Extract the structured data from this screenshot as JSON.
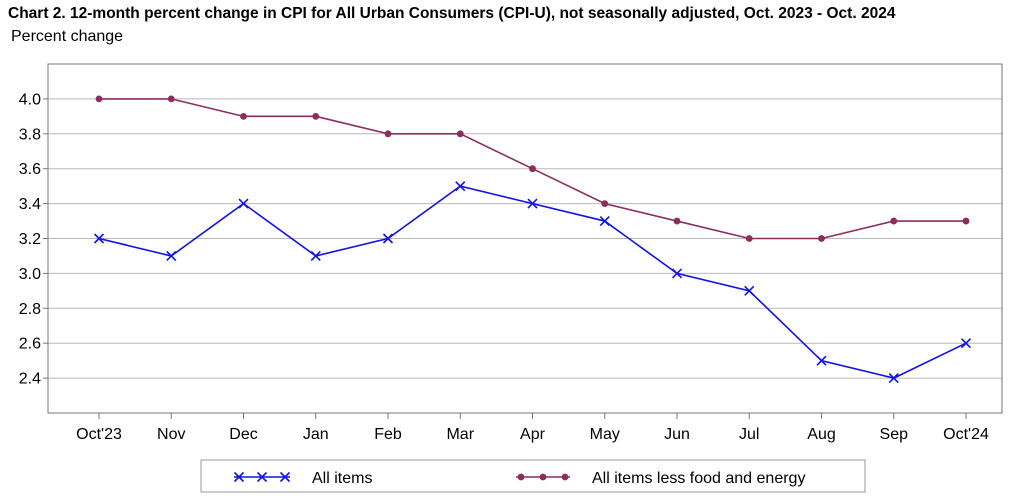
{
  "chart_data": {
    "type": "line",
    "title": "Chart 2. 12-month percent change in CPI for All Urban Consumers (CPI-U), not seasonally adjusted, Oct. 2023 - Oct. 2024",
    "ylabel": "Percent change",
    "xlabel": "",
    "categories": [
      "Oct'23",
      "Nov",
      "Dec",
      "Jan",
      "Feb",
      "Mar",
      "Apr",
      "May",
      "Jun",
      "Jul",
      "Aug",
      "Sep",
      "Oct'24"
    ],
    "ylim": [
      2.2,
      4.2
    ],
    "yticks": [
      2.4,
      2.6,
      2.8,
      3.0,
      3.2,
      3.4,
      3.6,
      3.8,
      4.0
    ],
    "ytick_labels": [
      "2.4",
      "2.6",
      "2.8",
      "3.0",
      "3.2",
      "3.4",
      "3.6",
      "3.8",
      "4.0"
    ],
    "grid": true,
    "legend_position": "bottom",
    "series": [
      {
        "name": "All items",
        "color": "#1111ee",
        "marker": "x",
        "values": [
          3.2,
          3.1,
          3.4,
          3.1,
          3.2,
          3.5,
          3.4,
          3.3,
          3.0,
          2.9,
          2.5,
          2.4,
          2.6
        ]
      },
      {
        "name": "All items less food and energy",
        "color": "#8b2d5e",
        "marker": "circle",
        "values": [
          4.0,
          4.0,
          3.9,
          3.9,
          3.8,
          3.8,
          3.6,
          3.4,
          3.3,
          3.2,
          3.2,
          3.3,
          3.3
        ]
      }
    ]
  }
}
